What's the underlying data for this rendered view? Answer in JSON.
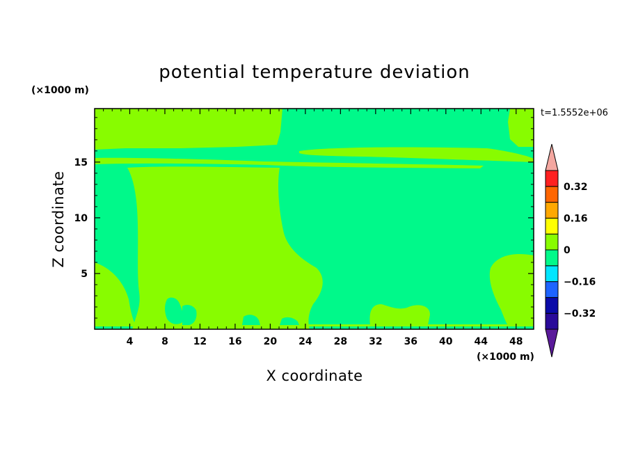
{
  "chart_data": {
    "type": "heatmap",
    "title": "potential temperature deviation",
    "xlabel": "X coordinate",
    "ylabel": "Z coordinate",
    "x_unit": "(×1000 m)",
    "y_unit": "(×1000 m)",
    "time_label": "t=1.5552e+06",
    "xlim": [
      0,
      50
    ],
    "ylim": [
      0,
      19.8
    ],
    "x_ticks": [
      4,
      8,
      12,
      16,
      20,
      24,
      28,
      32,
      36,
      40,
      44,
      48
    ],
    "y_ticks": [
      5,
      10,
      15
    ],
    "colorbar": {
      "tick_labels": [
        "0.32",
        "0.16",
        "0",
        "-0.16",
        "-0.32"
      ],
      "levels": [
        -0.4,
        -0.32,
        -0.24,
        -0.16,
        -0.08,
        0,
        0.08,
        0.16,
        0.24,
        0.32,
        0.4
      ],
      "colors": [
        "#5a1a9a",
        "#2a0a9a",
        "#0a0aa8",
        "#1e64ff",
        "#00e6ff",
        "#00f98a",
        "#88fc00",
        "#ffff00",
        "#ffa800",
        "#ff6600",
        "#ff2020",
        "#f4a7a0"
      ],
      "extend": "both"
    },
    "field_summary": "Deviation field takes values in two classes: 0 to 0.08 (light green) and -0.08 to 0 (green). Positive regions: a broad column x≈3–25, z≈0–14.5; upper layer z≈16.3–19.8 for x≈0–17; two thin lenses near z≈15–16.5; a right-edge patch x≈44–50, z≈0–6.5; small patch x≈31–38, z≈0–2.5."
  }
}
